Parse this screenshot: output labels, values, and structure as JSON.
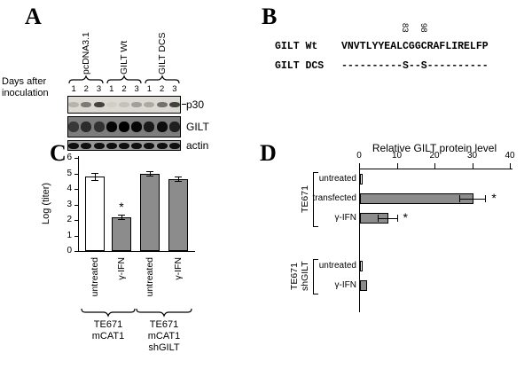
{
  "letters": {
    "a": "A",
    "b": "B",
    "c": "C",
    "d": "D"
  },
  "panel_a": {
    "group_labels": [
      "pcDNA3.1",
      "GILT Wt",
      "GILT DCS"
    ],
    "left_label_lines": [
      "Days after",
      "inoculation"
    ],
    "lane_numbers": [
      "1",
      "2",
      "3",
      "1",
      "2",
      "3",
      "1",
      "2",
      "3"
    ],
    "blots": [
      {
        "label": "p30",
        "bg": "#dcd9d3",
        "band_color": "#1c1c1c",
        "intensities": [
          0.2,
          0.5,
          0.8,
          0.06,
          0.12,
          0.3,
          0.25,
          0.55,
          0.8
        ]
      },
      {
        "label": "GILT",
        "bg": "#7d7d7d",
        "band_color": "#000000",
        "intensities": [
          0.55,
          0.65,
          0.6,
          0.95,
          1,
          0.95,
          0.8,
          0.9,
          0.75
        ]
      },
      {
        "label": "actin",
        "bg": "#979797",
        "band_color": "#000000",
        "intensities": [
          0.9,
          0.9,
          0.9,
          0.9,
          0.9,
          0.9,
          0.9,
          0.9,
          0.9
        ]
      }
    ]
  },
  "panel_b": {
    "rows": [
      {
        "name": "GILT Wt",
        "seq": "VNVTLYYEALCGGCRAFLIRELFP"
      },
      {
        "name": "GILT DCS",
        "seq": "----------S--S----------"
      }
    ],
    "residue_numbers": [
      {
        "text": "83",
        "seq_index": 10
      },
      {
        "text": "98",
        "seq_index": 13
      }
    ]
  },
  "chart_data": [
    {
      "panel": "C",
      "type": "bar",
      "ylabel": "Log (titer)",
      "ylim": [
        0,
        6
      ],
      "yticks": [
        0,
        1,
        2,
        3,
        4,
        5,
        6
      ],
      "bars": [
        {
          "label": "untreated",
          "value": 4.8,
          "error": 0.25,
          "fill": "#ffffff",
          "sig": ""
        },
        {
          "label": "γ-IFN",
          "value": 2.2,
          "error": 0.15,
          "fill": "#8c8c8c",
          "sig": "*"
        },
        {
          "label": "untreated",
          "value": 5.0,
          "error": 0.15,
          "fill": "#8c8c8c",
          "sig": ""
        },
        {
          "label": "γ-IFN",
          "value": 4.65,
          "error": 0.15,
          "fill": "#8c8c8c",
          "sig": ""
        }
      ],
      "groups": [
        {
          "bar_indices": [
            0,
            1
          ],
          "label_lines": [
            "TE671",
            "mCAT1"
          ]
        },
        {
          "bar_indices": [
            2,
            3
          ],
          "label_lines": [
            "TE671",
            "mCAT1",
            "shGILT"
          ]
        }
      ]
    },
    {
      "panel": "D",
      "type": "bar-horizontal",
      "title": "Relative GILT protein level",
      "xlim": [
        0,
        40
      ],
      "xticks": [
        0,
        10,
        20,
        30,
        40
      ],
      "groups": [
        {
          "label_lines": [
            "TE671"
          ],
          "rows": [
            {
              "label": "untreated",
              "value": 0.8,
              "error": 0,
              "fill": "#ffffff",
              "sig": ""
            },
            {
              "label": "transfected",
              "value": 30,
              "error": 3.5,
              "fill": "#8c8c8c",
              "sig": "*"
            },
            {
              "label": "γ-IFN",
              "value": 7.5,
              "error": 2.5,
              "fill": "#8c8c8c",
              "sig": "*"
            }
          ]
        },
        {
          "label_lines": [
            "TE671",
            "shGILT"
          ],
          "rows": [
            {
              "label": "untreated",
              "value": 0.8,
              "error": 0,
              "fill": "#ffffff",
              "sig": ""
            },
            {
              "label": "γ-IFN",
              "value": 1.8,
              "error": 0,
              "fill": "#8c8c8c",
              "sig": ""
            }
          ]
        }
      ]
    }
  ]
}
